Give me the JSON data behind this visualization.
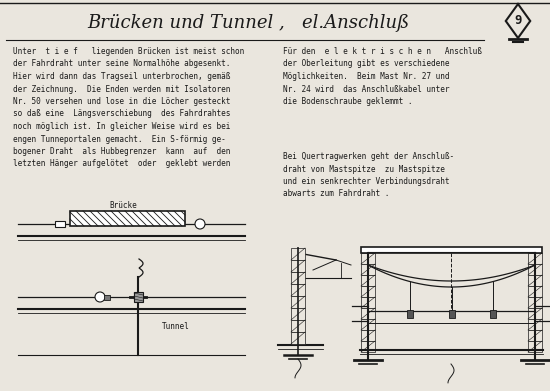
{
  "bg_color": "#eae6de",
  "title": "Brücken und Tunnel ,   el.Anschluß",
  "page_number": "9",
  "left_text": "Unter  t i e f   liegenden Brücken ist meist schon\nder Fahrdraht unter seine Normalhöhe abgesenkt.\nHier wird dann das Tragseil unterbrochen, gemäß\nder Zeichnung.  Die Enden werden mit Isolatoren\nNr. 50 versehen und lose in die Löcher gesteckt\nso daß eine  Längsverschiebung  des Fahrdrahtes\nnoch möglich ist. In gleicher Weise wird es bei\nengen Tunneportalen gemacht.  Ein S-förmig ge-\nbogener Draht  als Hubbegrenzer  kann  auf  den\nletzten Hänger aufgelötet  oder  geklebt werden",
  "right_text_1": "Für den  e l e k t r i s c h e n   Anschluß\nder Oberleitung gibt es verschiedene\nMöglichkeiten.  Beim Mast Nr. 27 und\nNr. 24 wird  das Anschlußkabel unter\ndie Bodenschraube geklemmt .",
  "right_text_2": "Bei Quertragwerken geht der Anschluß-\ndraht von Mastspitze  zu Mastspitze\nund ein senkrechter Verbindungsdraht\nabwarts zum Fahrdraht .",
  "line_color": "#1a1a1a",
  "text_color": "#1a1a1a"
}
